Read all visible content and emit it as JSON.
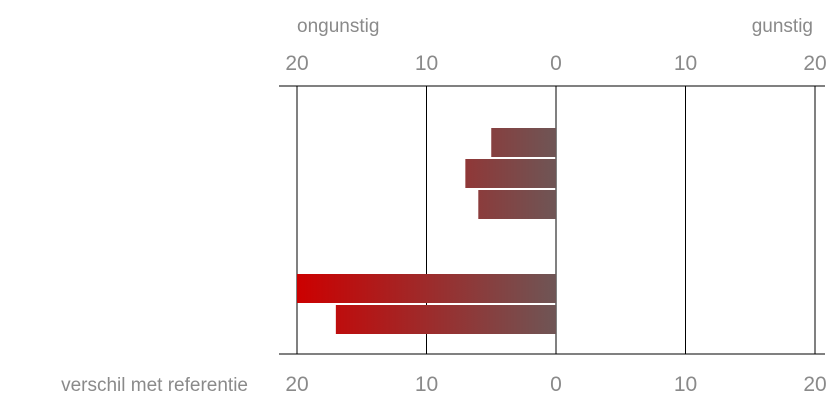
{
  "chart_data": {
    "type": "bar",
    "orientation": "horizontal",
    "title": "",
    "xlabel": "verschil met referentie",
    "ylabel": "",
    "xlim": [
      -20,
      20
    ],
    "grid": true,
    "side_labels": {
      "left": "ongunstig",
      "right": "gunstig"
    },
    "tick_labels": [
      "20",
      "10",
      "0",
      "10",
      "20"
    ],
    "tick_values": [
      -20,
      -10,
      0,
      10,
      20
    ],
    "groups": [
      {
        "values": [
          -5,
          -7,
          -6
        ]
      },
      {
        "values": [
          -20,
          -17
        ]
      }
    ]
  },
  "colors": {
    "bar_near_zero": "#6e5656",
    "bar_far": "#cc0000",
    "label": "#8a8a8a",
    "lines": "#000000"
  }
}
